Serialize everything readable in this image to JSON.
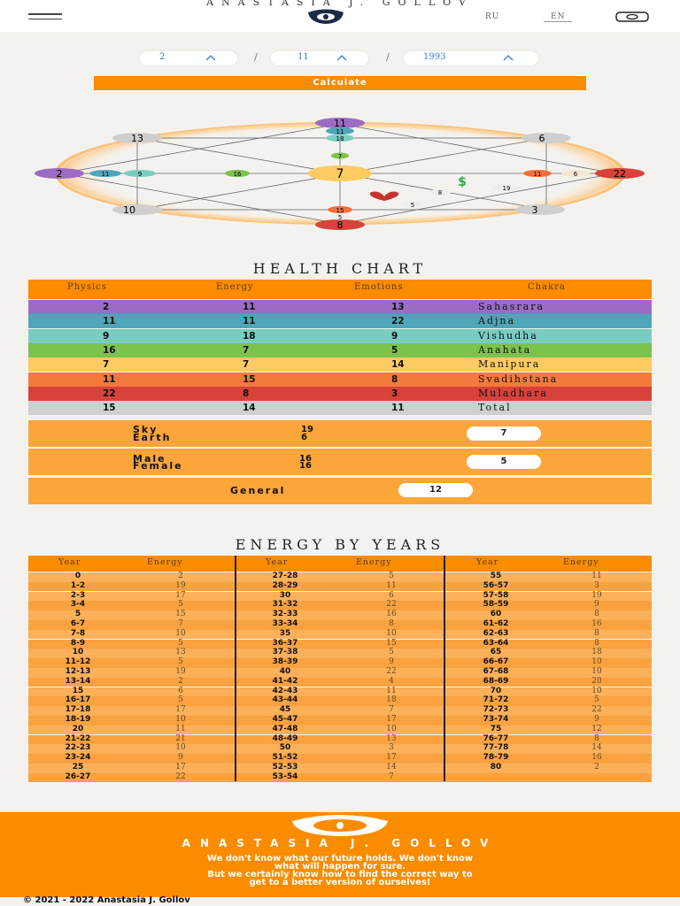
{
  "header": {
    "brand": "ANASTASIA J. GOLLOV",
    "lang_ru": "RU",
    "lang_en": "EN"
  },
  "date": {
    "day": "2",
    "month": "11",
    "year": "1993"
  },
  "calculate_label": "Calculate",
  "matrix": {
    "top": "11",
    "top_inner1": "11",
    "top_inner2": "18",
    "top_inner3": "7",
    "left": "2",
    "left_inner1": "11",
    "left_inner2": "9",
    "left_inner3": "16",
    "right": "22",
    "right_inner1": "11",
    "right_inner2": "6",
    "right_inner3": "19",
    "bottom": "8",
    "bottom_inner1": "15",
    "bottom_inner2": "5",
    "center": "7",
    "top_left": "13",
    "top_right": "6",
    "bottom_left": "10",
    "bottom_right": "3",
    "love_1": "8",
    "love_2": "5",
    "colors": {
      "purple": "#9b6cc4",
      "blue": "#4fa6b8",
      "teal": "#79cdc0",
      "green": "#7cc24e",
      "yellow": "#fdcb61",
      "orange": "#f36f3b",
      "red": "#d7423a",
      "gray": "#cfcfcf"
    }
  },
  "health_chart": {
    "title": "HEALTH CHART",
    "columns": [
      "Physics",
      "Energy",
      "Emotions",
      "Chakra"
    ],
    "rows": [
      {
        "physics": "2",
        "energy": "11",
        "emotions": "13",
        "chakra": "Sahasrara",
        "color": "#9b6cc4"
      },
      {
        "physics": "11",
        "energy": "11",
        "emotions": "22",
        "chakra": "Adjna",
        "color": "#4fa6b8"
      },
      {
        "physics": "9",
        "energy": "18",
        "emotions": "9",
        "chakra": "Vishudha",
        "color": "#79cdc0"
      },
      {
        "physics": "16",
        "energy": "7",
        "emotions": "5",
        "chakra": "Anahata",
        "color": "#7cc24e"
      },
      {
        "physics": "7",
        "energy": "7",
        "emotions": "14",
        "chakra": "Manipura",
        "color": "#fdcb61"
      },
      {
        "physics": "11",
        "energy": "15",
        "emotions": "8",
        "chakra": "Svadihstana",
        "color": "#f37a3c"
      },
      {
        "physics": "22",
        "energy": "8",
        "emotions": "3",
        "chakra": "Muladhara",
        "color": "#d7423a"
      },
      {
        "physics": "15",
        "energy": "14",
        "emotions": "11",
        "chakra": "Total",
        "color": "#cfcfcf"
      }
    ],
    "sky_label": "Sky",
    "sky_value": "19",
    "earth_label": "Earth",
    "earth_value": "6",
    "sky_earth_result": "7",
    "male_label": "Male",
    "male_value": "16",
    "female_label": "Female",
    "female_value": "16",
    "male_female_result": "5",
    "general_label": "General",
    "general_value": "12"
  },
  "energy_years": {
    "title": "ENERGY BY YEARS",
    "col_year": "Year",
    "col_energy": "Energy",
    "col1": [
      [
        "0",
        "2"
      ],
      [
        "1-2",
        "19"
      ],
      [
        "2-3",
        "17"
      ],
      [
        "3-4",
        "5"
      ],
      [
        "5",
        "15"
      ],
      [
        "6-7",
        "7"
      ],
      [
        "7-8",
        "10"
      ],
      [
        "8-9",
        "5"
      ],
      [
        "10",
        "13"
      ],
      [
        "11-12",
        "5"
      ],
      [
        "12-13",
        "19"
      ],
      [
        "13-14",
        "2"
      ],
      [
        "15",
        "6"
      ],
      [
        "16-17",
        "5"
      ],
      [
        "17-18",
        "17"
      ],
      [
        "18-19",
        "10"
      ],
      [
        "20",
        "11"
      ],
      [
        "21-22",
        "21"
      ],
      [
        "22-23",
        "10"
      ],
      [
        "23-24",
        "9"
      ],
      [
        "25",
        "17"
      ],
      [
        "26-27",
        "22"
      ]
    ],
    "col2": [
      [
        "27-28",
        "5"
      ],
      [
        "28-29",
        "11"
      ],
      [
        "30",
        "6"
      ],
      [
        "31-32",
        "22"
      ],
      [
        "32-33",
        "16"
      ],
      [
        "33-34",
        "8"
      ],
      [
        "35",
        "10"
      ],
      [
        "36-37",
        "15"
      ],
      [
        "37-38",
        "5"
      ],
      [
        "38-39",
        "9"
      ],
      [
        "40",
        "22"
      ],
      [
        "41-42",
        "4"
      ],
      [
        "42-43",
        "11"
      ],
      [
        "43-44",
        "18"
      ],
      [
        "45",
        "7"
      ],
      [
        "45-47",
        "17"
      ],
      [
        "47-48",
        "10"
      ],
      [
        "48-49",
        "13"
      ],
      [
        "50",
        "3"
      ],
      [
        "51-52",
        "17"
      ],
      [
        "52-53",
        "14"
      ],
      [
        "53-54",
        "7"
      ]
    ],
    "col3": [
      [
        "55",
        "11"
      ],
      [
        "56-57",
        "3"
      ],
      [
        "57-58",
        "19"
      ],
      [
        "58-59",
        "9"
      ],
      [
        "60",
        "8"
      ],
      [
        "61-62",
        "16"
      ],
      [
        "62-63",
        "8"
      ],
      [
        "63-64",
        "8"
      ],
      [
        "65",
        "18"
      ],
      [
        "66-67",
        "10"
      ],
      [
        "67-68",
        "10"
      ],
      [
        "68-69",
        "20"
      ],
      [
        "70",
        "10"
      ],
      [
        "71-72",
        "5"
      ],
      [
        "72-73",
        "22"
      ],
      [
        "73-74",
        "9"
      ],
      [
        "75",
        "12"
      ],
      [
        "76-77",
        "8"
      ],
      [
        "77-78",
        "14"
      ],
      [
        "78-79",
        "16"
      ],
      [
        "80",
        "2"
      ]
    ]
  },
  "footer": {
    "brand": "ANASTASIA J. GOLLOV",
    "tagline_1": "We don't know what our future holds. We don't know",
    "tagline_2": "what will happen for sure.",
    "tagline_3": "But we certainly know how to find the correct way to",
    "tagline_4": "get to a better version of ourselves!",
    "copyright": "© 2021 - 2022 Anastasia J. Gollov"
  }
}
